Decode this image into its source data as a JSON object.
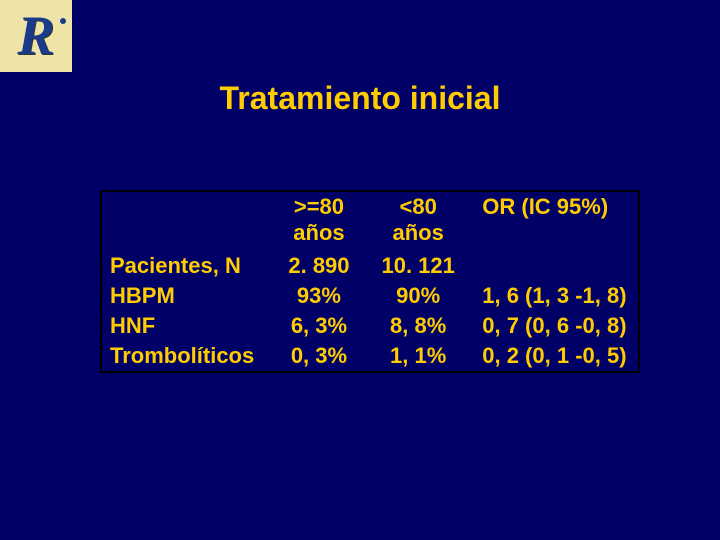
{
  "title": "Tratamiento inicial",
  "logo_letter": "R",
  "colors": {
    "background": "#000066",
    "text": "#ffcc00",
    "logo_bg": "#efe4a8",
    "logo_fg": "#1a3a8a",
    "border": "#000000"
  },
  "typography": {
    "title_fontsize": 32,
    "cell_fontsize": 22,
    "font_family": "Arial"
  },
  "table": {
    "headers": {
      "col1_line1": ">=80",
      "col1_line2": "años",
      "col2_line1": "<80",
      "col2_line2": "años",
      "col3": "OR (IC 95%)"
    },
    "rows": [
      {
        "label": "Pacientes, N",
        "c1": "2. 890",
        "c2": "10. 121",
        "c3": ""
      },
      {
        "label": "HBPM",
        "c1": "93%",
        "c2": "90%",
        "c3": "1, 6 (1, 3 -1, 8)"
      },
      {
        "label": "HNF",
        "c1": "6, 3%",
        "c2": "8, 8%",
        "c3": "0, 7 (0, 6 -0, 8)"
      },
      {
        "label": "Trombolíticos",
        "c1": "0, 3%",
        "c2": "1, 1%",
        "c3": "0, 2 (0, 1 -0, 5)"
      }
    ]
  }
}
